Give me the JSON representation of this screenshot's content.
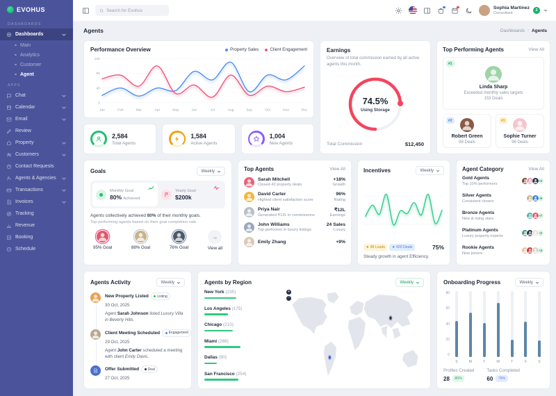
{
  "sidebar": {
    "logo": "EVOHUS",
    "sections": [
      {
        "label": "DASHBOARDS",
        "items": [
          {
            "label": "Dashboards",
            "icon": "dashboard-icon",
            "chevron": true,
            "active": true,
            "children": [
              {
                "label": "Main"
              },
              {
                "label": "Analytics"
              },
              {
                "label": "Customer"
              },
              {
                "label": "Agent",
                "active": true
              }
            ]
          }
        ]
      },
      {
        "label": "APPS",
        "items": [
          {
            "label": "Chat",
            "icon": "chat-icon",
            "chevron": true
          },
          {
            "label": "Calendar",
            "icon": "calendar-icon",
            "chevron": true
          },
          {
            "label": "Email",
            "icon": "email-icon",
            "chevron": true
          },
          {
            "label": "Review",
            "icon": "review-icon"
          },
          {
            "label": "Property",
            "icon": "property-icon",
            "chevron": true
          },
          {
            "label": "Customers",
            "icon": "customers-icon",
            "chevron": true
          },
          {
            "label": "Contact Requests",
            "icon": "contact-icon"
          },
          {
            "label": "Agents & Agencies",
            "icon": "agents-icon",
            "chevron": true
          },
          {
            "label": "Transactions",
            "icon": "transactions-icon",
            "chevron": true
          },
          {
            "label": "Invoices",
            "icon": "invoices-icon",
            "chevron": true
          },
          {
            "label": "Tracking",
            "icon": "tracking-icon"
          },
          {
            "label": "Revenue",
            "icon": "revenue-icon"
          },
          {
            "label": "Booking",
            "icon": "booking-icon"
          },
          {
            "label": "Schedule",
            "icon": "schedule-icon"
          }
        ]
      }
    ]
  },
  "topbar": {
    "search_placeholder": "Search for Evohus",
    "user": {
      "name": "Sophia Martinez",
      "role": "Consultant",
      "badge": "2"
    }
  },
  "breadcrumb": {
    "title": "Agents",
    "path": [
      "Dashboards",
      "Agents"
    ]
  },
  "performance": {
    "title": "Performance Overview",
    "legend": [
      "Property Sales",
      "Client Engagement"
    ],
    "colors": {
      "property_sales": "#4c8df6",
      "client_engagement": "#f0527a"
    },
    "chart_data": {
      "type": "line",
      "x": [
        "Jan",
        "Feb",
        "Mar",
        "Apr",
        "May",
        "Jun",
        "Jul",
        "Aug",
        "Sep",
        "Oct",
        "Nov",
        "Dec"
      ],
      "series": [
        {
          "name": "Property Sales",
          "values": [
            20,
            40,
            18,
            40,
            33,
            85,
            62,
            110,
            30,
            75,
            62,
            100
          ]
        },
        {
          "name": "Client Engagement",
          "values": [
            65,
            75,
            45,
            100,
            25,
            48,
            15,
            75,
            20,
            45,
            30,
            42
          ]
        }
      ],
      "ylim": [
        0,
        120
      ],
      "yticks": [
        0,
        40,
        80,
        120
      ]
    }
  },
  "stats": [
    {
      "value": "2,584",
      "label": "Total Agents",
      "icon": "person-icon",
      "color": "#1fc06d",
      "track": "#d9f5e5"
    },
    {
      "value": "1,584",
      "label": "Active Agents",
      "icon": "bolt-icon",
      "color": "#f59e0b",
      "track": "#fdeecd"
    },
    {
      "value": "1,004",
      "label": "New Agents",
      "icon": "star-icon",
      "color": "#8b5cf6",
      "track": "#ece4fd"
    }
  ],
  "earnings": {
    "title": "Earnings",
    "description": "Overview of total commission earned by all active agents this month.",
    "gauge_pct": "74.5%",
    "gauge_value": 74.5,
    "gauge_label": "Using Storage",
    "gauge_color": "#f4455e",
    "footer_label": "Total Commission",
    "footer_value": "$12,450"
  },
  "top_performing": {
    "title": "Top Performing Agents",
    "view_all": "View All",
    "agents": [
      {
        "rank": "#1",
        "name": "Linda Sharp",
        "desc": "Exceeded monthly sales targets",
        "deals": "153 Deals",
        "badge_bg": "#d8f6e5",
        "badge_color": "#17a05e",
        "avatar": "#9fd4a8"
      },
      {
        "rank": "#2",
        "name": "Robert Green",
        "deals": "98 Deals",
        "badge_bg": "#dcebfd",
        "badge_color": "#4a7de0",
        "avatar": "#8a5a44"
      },
      {
        "rank": "#3",
        "name": "Sophie Turner",
        "deals": "96 Deals",
        "badge_bg": "#fcf0cf",
        "badge_color": "#d9a514",
        "avatar": "#f3c7cf"
      }
    ]
  },
  "goals": {
    "title": "Goals",
    "period": "Weekly",
    "monthly": {
      "kicker": "Monthly Goal",
      "value": "80%",
      "suffix": "Achieved"
    },
    "yearly": {
      "kicker": "Yearly Goal",
      "value": "$200k"
    },
    "p1_a": "Agents collectively achieved ",
    "p1_b": "80%",
    "p1_c": " of their monthly goals.",
    "p2": "Top performing agents based on their goal completion rate.",
    "avatars": [
      {
        "label": "95% Goal",
        "ring": "#f06292",
        "avatar": "#e05a6a"
      },
      {
        "label": "88% Goal",
        "ring": "#c3cbd6",
        "avatar": "#c9b38a"
      },
      {
        "label": "76% Goal",
        "ring": "#8fa0b8",
        "avatar": "#4a5a6a"
      }
    ],
    "view_all": "View all"
  },
  "top_agents": {
    "title": "Top Agents",
    "view_all": "View All",
    "rows": [
      {
        "name": "Sarah Mitchell",
        "desc": "Closed 42 property deals",
        "value": "+18%",
        "label": "Growth",
        "avatar": "#e8647a"
      },
      {
        "name": "David Carter",
        "desc": "Highest client satisfaction score",
        "value": "96%",
        "label": "Rating",
        "avatar": "#f5b63c"
      },
      {
        "name": "Priya Nair",
        "desc": "Generated ₹12L in commissions",
        "value": "₹12L",
        "label": "Earnings",
        "avatar": "#b9bfc9"
      },
      {
        "name": "John Williams",
        "desc": "Top performer in luxury listings",
        "value": "24 Sales",
        "label": "Luxury",
        "avatar": "#9aa8bb"
      },
      {
        "name": "Emily Zhang",
        "desc": "",
        "value": "+9%",
        "label": "",
        "avatar": "#d8cbb8"
      }
    ]
  },
  "incentives": {
    "title": "Incentives",
    "period": "Weekly",
    "chart_data": {
      "type": "line",
      "values": [
        35,
        62,
        40,
        88,
        15,
        48,
        42,
        68,
        38,
        88,
        18,
        50
      ],
      "color": "#2fc98b"
    },
    "badges": [
      {
        "label": "98 Leads",
        "bg": "#fdf3d6",
        "color": "#c08c16"
      },
      {
        "label": "420 Deals",
        "bg": "#e1ecfd",
        "color": "#4a7de0"
      }
    ],
    "pct": "75%",
    "caption": "Steady growth in agent Efficiency."
  },
  "categories": {
    "title": "Agent Category",
    "view_all": "View All",
    "rows": [
      {
        "name": "Gold Agents",
        "desc": "Top 10% performers",
        "count": "+3",
        "avatars": [
          "#7a4a32",
          "#e8a1b0",
          "#2a3345"
        ]
      },
      {
        "name": "Silver Agents",
        "desc": "Consistent closers",
        "count": "+5",
        "avatars": [
          "#c9b38a",
          "#3d82d6"
        ]
      },
      {
        "name": "Bronze Agents",
        "desc": "New & rising stars",
        "count": "+7",
        "avatars": [
          "#45b8b0",
          "#e05a6a"
        ]
      },
      {
        "name": "Platinum Agents",
        "desc": "Luxury property experts",
        "count": "+2",
        "avatars": [
          "#4a9a8a",
          "#2a3345",
          "#e8e2d8"
        ]
      },
      {
        "name": "Rookie Agents",
        "desc": "New joiners",
        "count": "+4",
        "avatars": [
          "#e8c0a0",
          "#c03a3a",
          "#d8d2c8"
        ]
      }
    ]
  },
  "activity": {
    "title": "Agents Activity",
    "period": "Weekly",
    "items": [
      {
        "title": "New Property Listed",
        "badge": "Listing",
        "badge_color": "#22c55e",
        "date": "30 Oct, 2025",
        "desc": [
          [
            "t",
            "Agent "
          ],
          [
            "b",
            "Sarah Johnson"
          ],
          [
            "t",
            " listed "
          ],
          [
            "i",
            "Luxury Villa in Beverly Hills."
          ]
        ],
        "icon": "avatar",
        "avatar": "#e8a150"
      },
      {
        "title": "Client Meeting Scheduled",
        "badge": "Engagement",
        "badge_color": "#3b82f6",
        "date": "29 Oct, 2025",
        "desc": [
          [
            "t",
            "Agent "
          ],
          [
            "b",
            "John Carter"
          ],
          [
            "t",
            " scheduled a meeting with client "
          ],
          [
            "i",
            "Emily Davis"
          ],
          [
            "t",
            "."
          ]
        ],
        "icon": "avatar",
        "avatar": "#b8a890"
      },
      {
        "title": "Offer Submitted",
        "badge": "Deal",
        "badge_color": "#1f2a44",
        "date": "27 Oct, 2025",
        "desc": [],
        "icon": "doc",
        "avatar": "#4a6fd0"
      }
    ]
  },
  "regions": {
    "title": "Agents by Region",
    "period": "Weekly",
    "rows": [
      {
        "city": "New York",
        "count": "235",
        "pct": 88
      },
      {
        "city": "Los Angeles",
        "count": "175",
        "pct": 66
      },
      {
        "city": "Chicago",
        "count": "210",
        "pct": 79
      },
      {
        "city": "Miami",
        "count": "266",
        "pct": 100
      },
      {
        "city": "Dallas",
        "count": "90",
        "pct": 34
      },
      {
        "city": "San Francisco",
        "count": "254",
        "pct": 95
      }
    ]
  },
  "onboarding": {
    "title": "Onboarding Progress",
    "period": "Weekly",
    "chart_data": {
      "type": "bar",
      "categories": [
        "S",
        "M",
        "T",
        "W",
        "T",
        "F",
        "S"
      ],
      "values": [
        44,
        54,
        41,
        66,
        21,
        43,
        20
      ],
      "ylim": [
        0,
        80
      ],
      "yticks": [
        80,
        60,
        40,
        20,
        0
      ]
    },
    "footers": [
      {
        "label": "Profiles Created",
        "value": "28",
        "badge": "85%",
        "bg": "#e1f7eb",
        "color": "#1fae68"
      },
      {
        "label": "Tasks Completed",
        "value": "60",
        "badge": "78%",
        "bg": "#e3edfd",
        "color": "#5a8df0"
      }
    ]
  }
}
